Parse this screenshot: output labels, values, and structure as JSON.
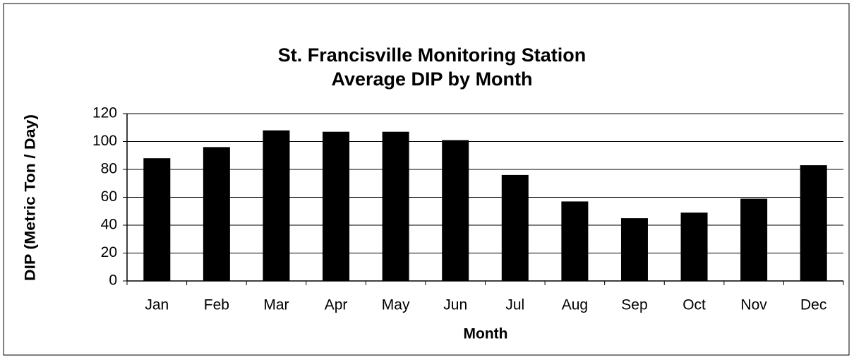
{
  "chart_data": {
    "type": "bar",
    "title": [
      "St. Francisville Monitoring Station",
      "Average DIP by Month"
    ],
    "x_label": "Month",
    "y_label": "DIP (Metric Ton / Day)",
    "categories": [
      "Jan",
      "Feb",
      "Mar",
      "Apr",
      "May",
      "Jun",
      "Jul",
      "Aug",
      "Sep",
      "Oct",
      "Nov",
      "Dec"
    ],
    "values": [
      88,
      96,
      108,
      107,
      107,
      101,
      76,
      57,
      45,
      49,
      59,
      83
    ],
    "color": "#000000",
    "ylim": [
      0,
      120
    ],
    "yticks": [
      0,
      20,
      40,
      60,
      80,
      100,
      120
    ],
    "grid": true
  }
}
